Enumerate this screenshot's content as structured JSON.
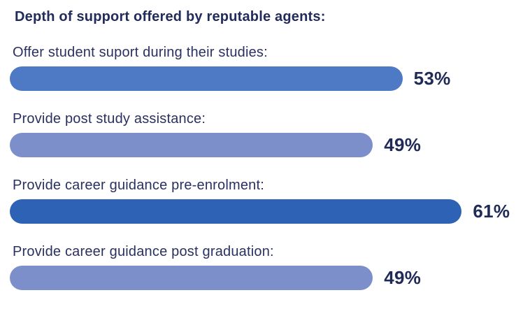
{
  "chart_data": {
    "type": "bar",
    "orientation": "horizontal",
    "title": "Depth of support offered by reputable agents:",
    "categories": [
      "Offer student suport during their studies:",
      "Provide post study assistance:",
      "Provide career guidance pre-enrolment:",
      "Provide career guidance post graduation:"
    ],
    "values": [
      53,
      49,
      61,
      49
    ],
    "value_labels": [
      "53%",
      "49%",
      "61%",
      "49%"
    ],
    "bar_colors": [
      "#4e79c4",
      "#7d8fcb",
      "#2d62b4",
      "#7d8fcb"
    ],
    "text_color": "#222c5a",
    "value_label_color": "#1f2a56",
    "background_color": "#ffffff",
    "axis_max_for_layout": 67,
    "grid": false,
    "legend": false,
    "xlabel": "",
    "ylabel": ""
  }
}
